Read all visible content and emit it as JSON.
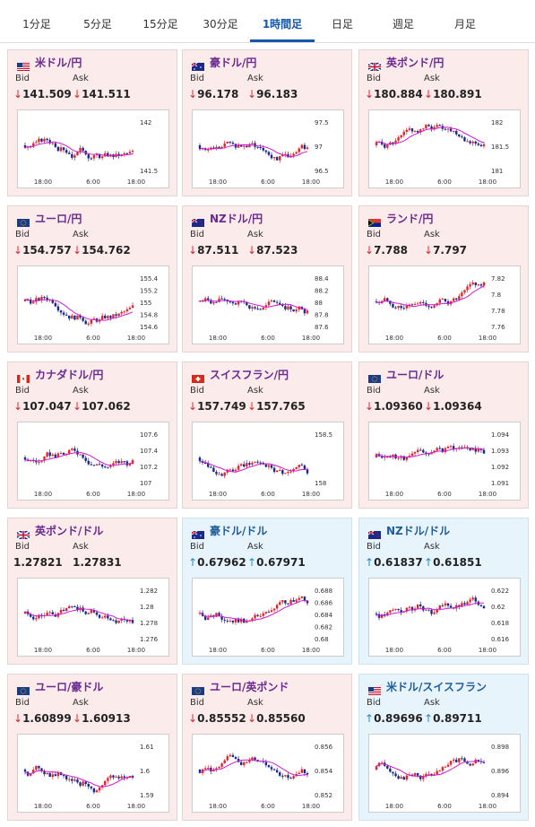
{
  "tabs": [
    {
      "label": "1分足",
      "active": false
    },
    {
      "label": "5分足",
      "active": false
    },
    {
      "label": "15分足",
      "active": false
    },
    {
      "label": "30分足",
      "active": false
    },
    {
      "label": "1時間足",
      "active": true
    },
    {
      "label": "日足",
      "active": false
    },
    {
      "label": "週足",
      "active": false
    },
    {
      "label": "月足",
      "active": false
    }
  ],
  "labels": {
    "bid": "Bid",
    "ask": "Ask"
  },
  "colors": {
    "down_bg": "#fcebeb",
    "up_bg": "#e8f4fb",
    "arrow_down": "#e0262f",
    "arrow_up": "#1e8ad1",
    "candle_up": "#e0262f",
    "candle_down": "#1a2a8a",
    "ma": "#d21bd0",
    "ma_short": "#22b3c7"
  },
  "cards": [
    {
      "pair": "米ドル/円",
      "flag": "us",
      "direction": "down",
      "bid": "141.509",
      "ask": "141.511",
      "x_ticks": [
        "18:00",
        "6:00",
        "18:00"
      ],
      "y_ticks": [
        "142",
        "141.5"
      ]
    },
    {
      "pair": "豪ドル/円",
      "flag": "au",
      "direction": "down",
      "bid": "96.178",
      "ask": "96.183",
      "x_ticks": [
        "18:00",
        "6:00",
        "18:00"
      ],
      "y_ticks": [
        "97.5",
        "97",
        "96.5"
      ]
    },
    {
      "pair": "英ポンド/円",
      "flag": "gb",
      "direction": "down",
      "bid": "180.884",
      "ask": "180.891",
      "x_ticks": [
        "18:00",
        "6:00",
        "18:00"
      ],
      "y_ticks": [
        "182",
        "181.5",
        "181"
      ]
    },
    {
      "pair": "ユーロ/円",
      "flag": "eu",
      "direction": "down",
      "bid": "154.757",
      "ask": "154.762",
      "x_ticks": [
        "18:00",
        "6:00",
        "18:00"
      ],
      "y_ticks": [
        "155.4",
        "155.2",
        "155",
        "154.8",
        "154.6"
      ]
    },
    {
      "pair": "NZドル/円",
      "flag": "nz",
      "direction": "down",
      "bid": "87.511",
      "ask": "87.523",
      "x_ticks": [
        "18:00",
        "6:00",
        "18:00"
      ],
      "y_ticks": [
        "88.4",
        "88.2",
        "88",
        "87.8",
        "87.6"
      ]
    },
    {
      "pair": "ランド/円",
      "flag": "za",
      "direction": "down",
      "bid": "7.788",
      "ask": "7.797",
      "x_ticks": [
        "18:00",
        "6:00",
        "18:00"
      ],
      "y_ticks": [
        "7.82",
        "7.8",
        "7.78",
        "7.76"
      ]
    },
    {
      "pair": "カナダドル/円",
      "flag": "ca",
      "direction": "down",
      "bid": "107.047",
      "ask": "107.062",
      "x_ticks": [
        "18:00",
        "6:00",
        "18:00"
      ],
      "y_ticks": [
        "107.6",
        "107.4",
        "107.2",
        "107"
      ]
    },
    {
      "pair": "スイスフラン/円",
      "flag": "ch",
      "direction": "down",
      "bid": "157.749",
      "ask": "157.765",
      "x_ticks": [
        "18:00",
        "6:00",
        "18:00"
      ],
      "y_ticks": [
        "158.5",
        "158"
      ]
    },
    {
      "pair": "ユーロ/ドル",
      "flag": "eu",
      "direction": "down",
      "bid": "1.09360",
      "ask": "1.09364",
      "x_ticks": [
        "18:00",
        "6:00",
        "18:00"
      ],
      "y_ticks": [
        "1.094",
        "1.093",
        "1.092",
        "1.091"
      ]
    },
    {
      "pair": "英ポンド/ドル",
      "flag": "gb",
      "direction": "none",
      "bid": "1.27821",
      "ask": "1.27831",
      "x_ticks": [
        "18:00",
        "6:00",
        "18:00"
      ],
      "y_ticks": [
        "1.282",
        "1.28",
        "1.278",
        "1.276"
      ]
    },
    {
      "pair": "豪ドル/ドル",
      "flag": "au",
      "direction": "up",
      "bid": "0.67962",
      "ask": "0.67971",
      "x_ticks": [
        "18:00",
        "6:00",
        "18:00"
      ],
      "y_ticks": [
        "0.688",
        "0.686",
        "0.684",
        "0.682",
        "0.68"
      ]
    },
    {
      "pair": "NZドル/ドル",
      "flag": "nz",
      "direction": "up",
      "bid": "0.61837",
      "ask": "0.61851",
      "x_ticks": [
        "18:00",
        "6:00",
        "18:00"
      ],
      "y_ticks": [
        "0.622",
        "0.62",
        "0.618",
        "0.616"
      ]
    },
    {
      "pair": "ユーロ/豪ドル",
      "flag": "eu",
      "direction": "down",
      "bid": "1.60899",
      "ask": "1.60913",
      "x_ticks": [
        "18:00",
        "6:00",
        "18:00"
      ],
      "y_ticks": [
        "1.61",
        "1.6",
        "1.59"
      ]
    },
    {
      "pair": "ユーロ/英ポンド",
      "flag": "eu",
      "direction": "down",
      "bid": "0.85552",
      "ask": "0.85560",
      "x_ticks": [
        "18:00",
        "6:00",
        "18:00"
      ],
      "y_ticks": [
        "0.856",
        "0.854",
        "0.852"
      ]
    },
    {
      "pair": "米ドル/スイスフラン",
      "flag": "us",
      "direction": "up",
      "bid": "0.89696",
      "ask": "0.89711",
      "x_ticks": [
        "18:00",
        "6:00",
        "18:00"
      ],
      "y_ticks": [
        "0.898",
        "0.896",
        "0.894"
      ]
    }
  ]
}
